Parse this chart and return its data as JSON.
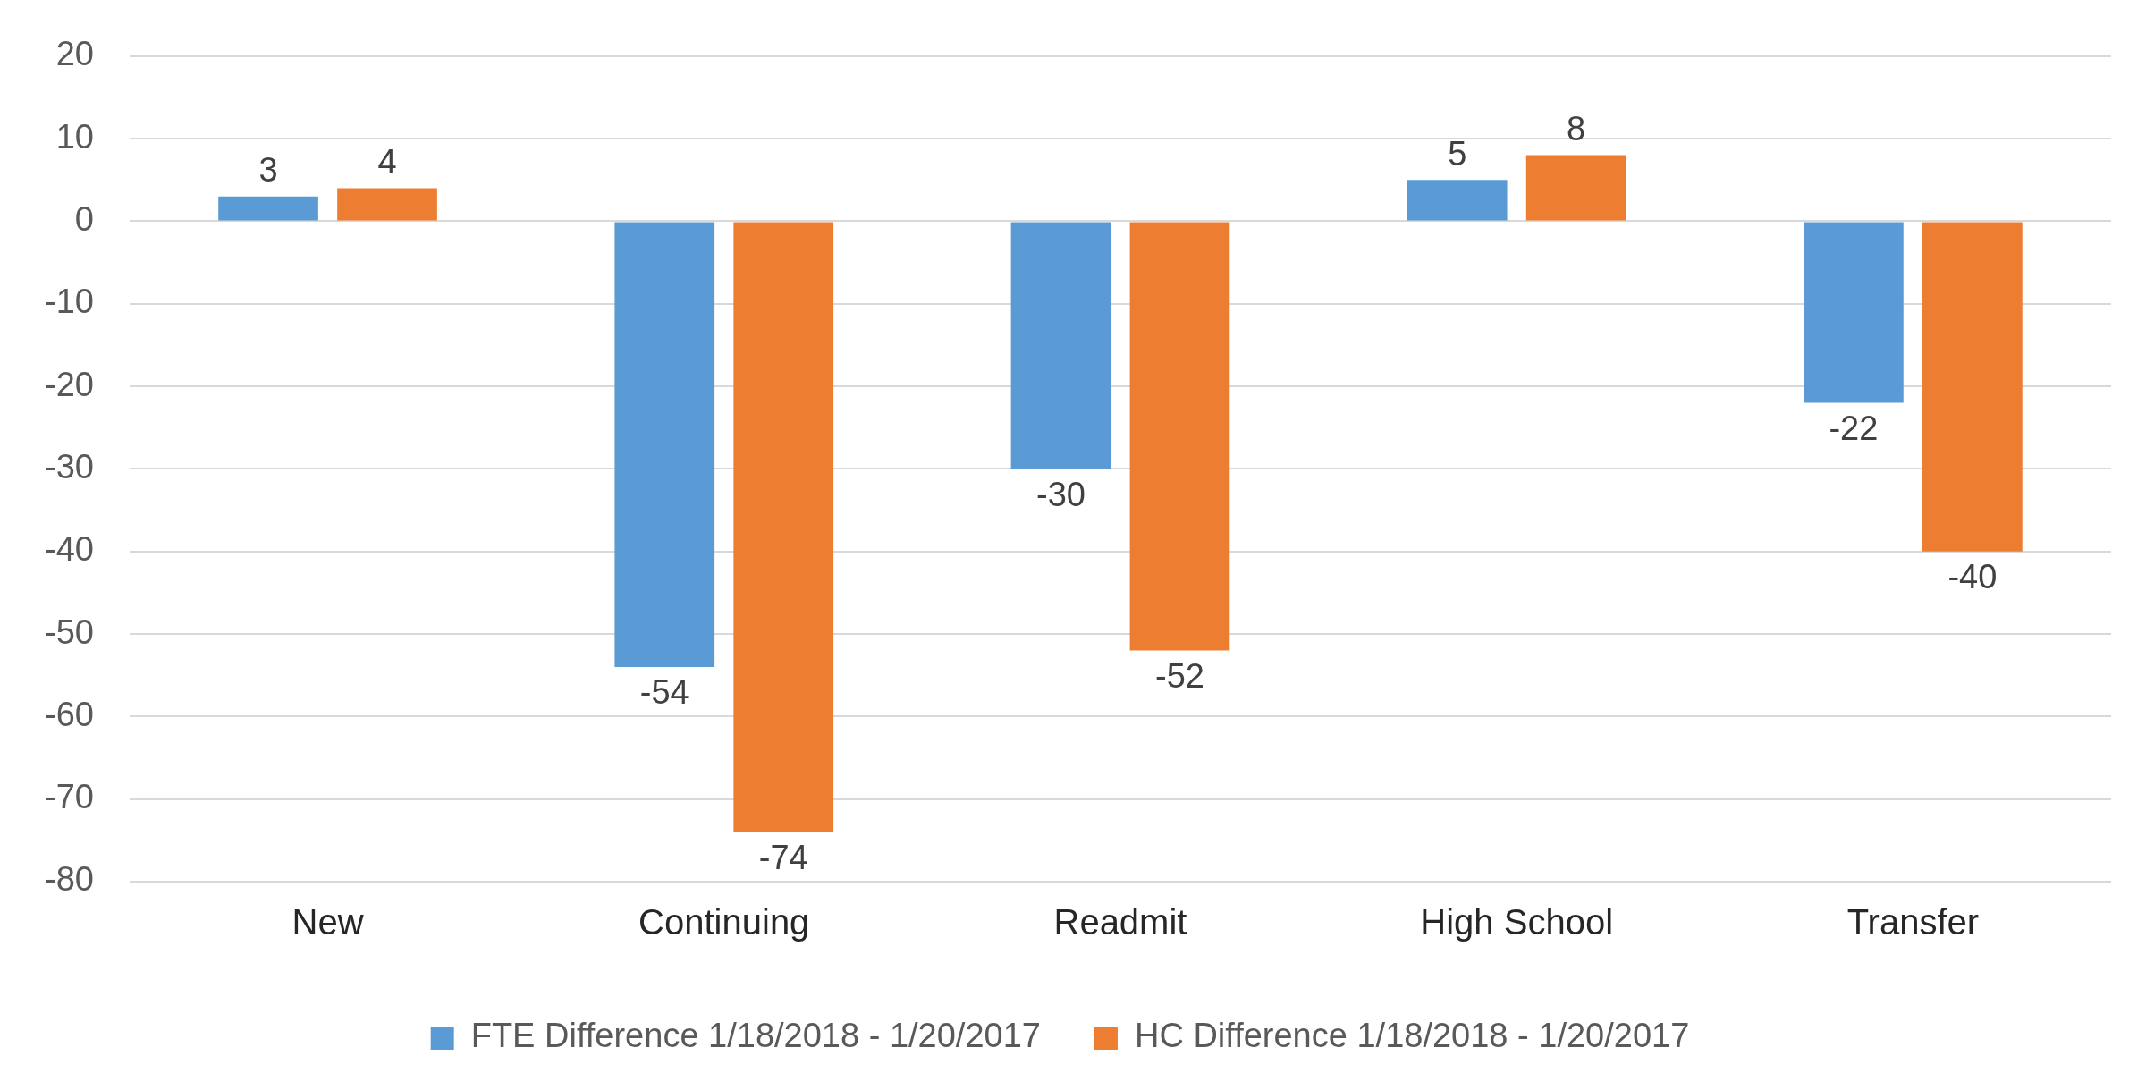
{
  "chart_data": {
    "type": "bar",
    "categories": [
      "New",
      "Continuing",
      "Readmit",
      "High School",
      "Transfer"
    ],
    "series": [
      {
        "name": "FTE Difference 1/18/2018 - 1/20/2017",
        "color": "#5b9bd5",
        "values": [
          3,
          -54,
          -30,
          5,
          -22
        ]
      },
      {
        "name": "HC Difference 1/18/2018 - 1/20/2017",
        "color": "#ed7d31",
        "values": [
          4,
          -74,
          -52,
          8,
          -40
        ]
      }
    ],
    "ylim": [
      -80,
      20
    ],
    "yticks": [
      -80,
      -70,
      -60,
      -50,
      -40,
      -30,
      -20,
      -10,
      0,
      10,
      20
    ],
    "grid": "y",
    "legend": "bottom",
    "data_labels": true
  }
}
